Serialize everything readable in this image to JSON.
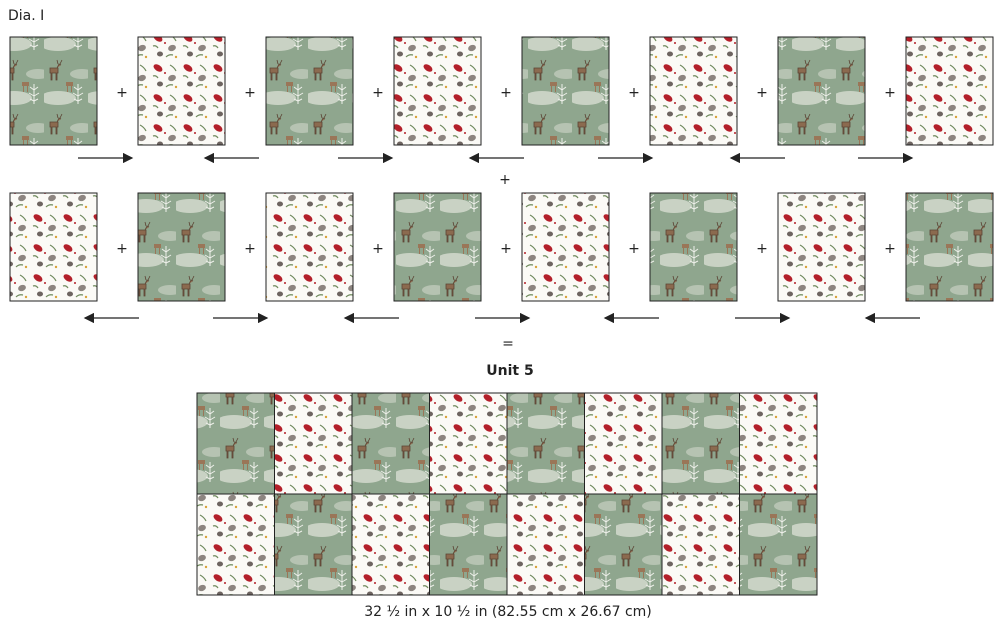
{
  "title": "Dia. I",
  "plus": "+",
  "equals": "=",
  "unit_title": "Unit 5",
  "dimensions": "32 ½ in x 10 ½ in (82.55 cm x 26.67 cm)"
}
